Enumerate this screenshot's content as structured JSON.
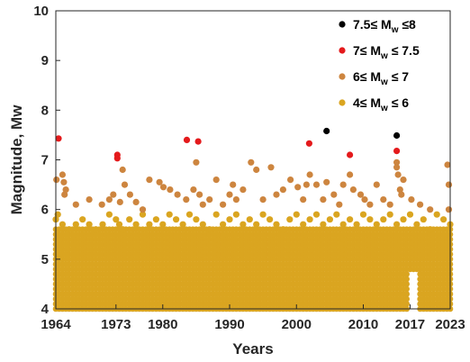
{
  "chart_data": {
    "type": "scatter",
    "xlabel": "Years",
    "ylabel": "Magnitude, Mw",
    "xlim": [
      1964,
      2023
    ],
    "ylim": [
      4,
      10
    ],
    "xticks": [
      1964,
      1973,
      1980,
      1990,
      2000,
      2010,
      2017,
      2023
    ],
    "xtick_labels": [
      "1964",
      "1973",
      "1980",
      "1990",
      "2000",
      "2010",
      "2017",
      "2023"
    ],
    "yticks": [
      4,
      5,
      6,
      7,
      8,
      9,
      10
    ],
    "ytick_labels": [
      "4",
      "5",
      "6",
      "7",
      "8",
      "9",
      "10"
    ],
    "grid": false,
    "legend_position": "top-right",
    "legend": [
      {
        "pre": "7.5≤ M",
        "sub": "w",
        "post": " ≤8",
        "color": "#000000"
      },
      {
        "pre": "7≤ M",
        "sub": "w",
        "post": " ≤ 7.5",
        "color": "#e41a1c"
      },
      {
        "pre": "6≤ M",
        "sub": "w",
        "post": " ≤ 7",
        "color": "#cd853f"
      },
      {
        "pre": "4≤ M",
        "sub": "w",
        "post": " ≤ 6",
        "color": "#daa520"
      }
    ],
    "series": [
      {
        "range": "7.5-8",
        "color": "#000000",
        "points": [
          [
            2004.5,
            7.58
          ],
          [
            2015.0,
            7.49
          ]
        ]
      },
      {
        "range": "7-7.5",
        "color": "#e41a1c",
        "points": [
          [
            1964.4,
            7.43
          ],
          [
            1973.2,
            7.1
          ],
          [
            1973.2,
            7.03
          ],
          [
            1983.6,
            7.4
          ],
          [
            1985.3,
            7.37
          ],
          [
            2001.9,
            7.33
          ],
          [
            2008.0,
            7.1
          ],
          [
            2015.0,
            7.18
          ]
        ]
      },
      {
        "range": "6-7",
        "color": "#cd853f",
        "points": [
          [
            1964.1,
            6.6
          ],
          [
            1965.0,
            6.7
          ],
          [
            1965.2,
            6.55
          ],
          [
            1965.3,
            6.3
          ],
          [
            1965.5,
            6.4
          ],
          [
            1967.0,
            6.1
          ],
          [
            1969.0,
            6.2
          ],
          [
            1970.9,
            6.1
          ],
          [
            1972.0,
            6.2
          ],
          [
            1972.6,
            6.3
          ],
          [
            1973.6,
            6.15
          ],
          [
            1974.0,
            6.8
          ],
          [
            1974.3,
            6.5
          ],
          [
            1975.1,
            6.3
          ],
          [
            1976.0,
            6.15
          ],
          [
            1977.0,
            6.0
          ],
          [
            1978.0,
            6.6
          ],
          [
            1979.5,
            6.55
          ],
          [
            1980.1,
            6.45
          ],
          [
            1981.1,
            6.4
          ],
          [
            1982.2,
            6.3
          ],
          [
            1983.5,
            6.2
          ],
          [
            1984.6,
            6.4
          ],
          [
            1985.0,
            6.95
          ],
          [
            1985.5,
            6.3
          ],
          [
            1986.0,
            6.1
          ],
          [
            1987.0,
            6.2
          ],
          [
            1988.0,
            6.6
          ],
          [
            1989.0,
            6.1
          ],
          [
            1990.0,
            6.3
          ],
          [
            1990.5,
            6.5
          ],
          [
            1991.0,
            6.2
          ],
          [
            1992.0,
            6.4
          ],
          [
            1993.2,
            6.95
          ],
          [
            1994.0,
            6.8
          ],
          [
            1995.0,
            6.2
          ],
          [
            1996.2,
            6.85
          ],
          [
            1997.0,
            6.3
          ],
          [
            1998.0,
            6.4
          ],
          [
            1999.1,
            6.6
          ],
          [
            2000.2,
            6.45
          ],
          [
            2001.0,
            6.2
          ],
          [
            2001.5,
            6.5
          ],
          [
            2002.0,
            6.7
          ],
          [
            2003.0,
            6.5
          ],
          [
            2004.0,
            6.2
          ],
          [
            2004.5,
            6.55
          ],
          [
            2005.6,
            6.3
          ],
          [
            2006.4,
            6.1
          ],
          [
            2007.0,
            6.5
          ],
          [
            2008.0,
            6.7
          ],
          [
            2008.5,
            6.4
          ],
          [
            2009.6,
            6.3
          ],
          [
            2010.2,
            6.2
          ],
          [
            2011.0,
            6.1
          ],
          [
            2012.0,
            6.5
          ],
          [
            2013.0,
            6.2
          ],
          [
            2014.0,
            6.1
          ],
          [
            2015.0,
            6.95
          ],
          [
            2015.0,
            6.85
          ],
          [
            2015.2,
            6.7
          ],
          [
            2015.5,
            6.4
          ],
          [
            2015.7,
            6.3
          ],
          [
            2016.0,
            6.6
          ],
          [
            2017.2,
            6.2
          ],
          [
            2018.5,
            6.1
          ],
          [
            2020.0,
            6.0
          ],
          [
            2022.6,
            6.9
          ],
          [
            2022.8,
            6.5
          ],
          [
            2022.8,
            6.0
          ]
        ]
      },
      {
        "range": "4-6",
        "color": "#daa520",
        "dense_band": {
          "year_from": 1964,
          "year_to": 2023,
          "mag_from": 4.0,
          "mag_to": 5.6,
          "mag_step": 0.1
        },
        "points": [
          [
            1964.0,
            5.8
          ],
          [
            1964.3,
            5.9
          ],
          [
            1965.0,
            5.7
          ],
          [
            1966.0,
            5.6
          ],
          [
            1967.0,
            5.7
          ],
          [
            1968.0,
            5.8
          ],
          [
            1969.0,
            5.7
          ],
          [
            1970.0,
            5.6
          ],
          [
            1971.0,
            5.7
          ],
          [
            1972.0,
            5.9
          ],
          [
            1973.0,
            5.8
          ],
          [
            1973.5,
            5.7
          ],
          [
            1974.0,
            5.6
          ],
          [
            1975.0,
            5.8
          ],
          [
            1976.0,
            5.7
          ],
          [
            1977.0,
            5.9
          ],
          [
            1978.0,
            5.7
          ],
          [
            1979.0,
            5.8
          ],
          [
            1980.0,
            5.7
          ],
          [
            1981.0,
            5.9
          ],
          [
            1982.0,
            5.8
          ],
          [
            1983.0,
            5.7
          ],
          [
            1984.0,
            5.9
          ],
          [
            1985.0,
            5.8
          ],
          [
            1986.0,
            5.7
          ],
          [
            1987.0,
            5.6
          ],
          [
            1988.0,
            5.9
          ],
          [
            1989.0,
            5.7
          ],
          [
            1990.0,
            5.8
          ],
          [
            1991.0,
            5.9
          ],
          [
            1992.0,
            5.7
          ],
          [
            1993.0,
            5.8
          ],
          [
            1994.0,
            5.7
          ],
          [
            1995.0,
            5.9
          ],
          [
            1996.0,
            5.8
          ],
          [
            1997.0,
            5.7
          ],
          [
            1998.0,
            5.6
          ],
          [
            1999.0,
            5.8
          ],
          [
            2000.0,
            5.9
          ],
          [
            2001.0,
            5.7
          ],
          [
            2002.0,
            5.8
          ],
          [
            2003.0,
            5.9
          ],
          [
            2004.0,
            5.7
          ],
          [
            2005.0,
            5.8
          ],
          [
            2006.0,
            5.9
          ],
          [
            2007.0,
            5.7
          ],
          [
            2008.0,
            5.8
          ],
          [
            2009.0,
            5.7
          ],
          [
            2010.0,
            5.9
          ],
          [
            2011.0,
            5.8
          ],
          [
            2012.0,
            5.7
          ],
          [
            2013.0,
            5.8
          ],
          [
            2014.0,
            5.9
          ],
          [
            2015.0,
            5.7
          ],
          [
            2016.0,
            5.8
          ],
          [
            2017.0,
            5.9
          ],
          [
            2018.0,
            5.7
          ],
          [
            2019.0,
            5.8
          ],
          [
            2020.0,
            5.6
          ],
          [
            2021.0,
            5.9
          ],
          [
            2022.0,
            5.8
          ],
          [
            2023.0,
            5.7
          ]
        ]
      }
    ]
  }
}
